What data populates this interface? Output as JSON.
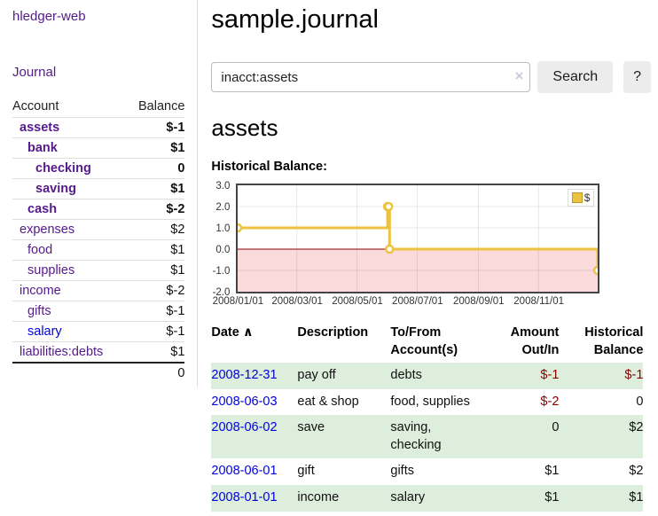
{
  "colors": {
    "link-purple": "#551a8b",
    "link-blue": "#0000dd",
    "neg-strong": "#8b0000",
    "neg-faded": "#bb7777",
    "row-green": "#ddeedd",
    "chart-gold": "#edc240",
    "chart-neg-bg": "#fadada",
    "chart-zero": "#8b0000",
    "chart-border": "#444444"
  },
  "app": {
    "title": "hledger-web"
  },
  "sidebar": {
    "nav": [
      {
        "label": "Journal"
      }
    ],
    "accounts_table": {
      "headers": [
        "Account",
        "Balance"
      ],
      "rows": [
        {
          "account": "assets",
          "balance": "$-1",
          "indent": 1,
          "bold": true,
          "balance_tone": "neg",
          "link_tone": "purple"
        },
        {
          "account": "bank",
          "balance": "$1",
          "indent": 2,
          "bold": true,
          "balance_tone": "",
          "link_tone": "purple"
        },
        {
          "account": "checking",
          "balance": "0",
          "indent": 3,
          "bold": true,
          "balance_tone": "",
          "link_tone": "purple"
        },
        {
          "account": "saving",
          "balance": "$1",
          "indent": 3,
          "bold": true,
          "balance_tone": "",
          "link_tone": "purple"
        },
        {
          "account": "cash",
          "balance": "$-2",
          "indent": 2,
          "bold": true,
          "balance_tone": "neg",
          "link_tone": "purple"
        },
        {
          "account": "expenses",
          "balance": "$2",
          "indent": 1,
          "bold": false,
          "balance_tone": "",
          "link_tone": "purple"
        },
        {
          "account": "food",
          "balance": "$1",
          "indent": 2,
          "bold": false,
          "balance_tone": "",
          "link_tone": "purple"
        },
        {
          "account": "supplies",
          "balance": "$1",
          "indent": 2,
          "bold": false,
          "balance_tone": "",
          "link_tone": "purple"
        },
        {
          "account": "income",
          "balance": "$-2",
          "indent": 1,
          "bold": false,
          "balance_tone": "negfade",
          "link_tone": "purple"
        },
        {
          "account": "gifts",
          "balance": "$-1",
          "indent": 2,
          "bold": false,
          "balance_tone": "negfade",
          "link_tone": "purple"
        },
        {
          "account": "salary",
          "balance": "$-1",
          "indent": 2,
          "bold": false,
          "balance_tone": "negfade",
          "link_tone": "blue"
        },
        {
          "account": "liabilities:debts",
          "balance": "$1",
          "indent": 1,
          "bold": false,
          "balance_tone": "",
          "link_tone": "purple"
        }
      ],
      "total": "0"
    }
  },
  "main": {
    "title": "sample.journal",
    "search": {
      "value": "inacct:assets",
      "clear_icon": "×",
      "button": "Search",
      "help_button": "?"
    },
    "account_heading": "assets",
    "chart_heading": "Historical Balance:",
    "register_table": {
      "headers": [
        "Date",
        "Description",
        "To/From Account(s)",
        "Amount Out/In",
        "Historical Balance"
      ],
      "sort_icon": "∧",
      "rows": [
        {
          "date": "2008-12-31",
          "description": "pay off",
          "accounts": "debts",
          "amount": "$-1",
          "amount_tone": "neg",
          "balance": "$-1",
          "balance_tone": "neg",
          "shaded": true
        },
        {
          "date": "2008-06-03",
          "description": "eat & shop",
          "accounts": "food, supplies",
          "amount": "$-2",
          "amount_tone": "neg",
          "balance": "0",
          "balance_tone": "",
          "shaded": false
        },
        {
          "date": "2008-06-02",
          "description": "save",
          "accounts": "saving, checking",
          "amount": "0",
          "amount_tone": "",
          "balance": "$2",
          "balance_tone": "",
          "shaded": true
        },
        {
          "date": "2008-06-01",
          "description": "gift",
          "accounts": "gifts",
          "amount": "$1",
          "amount_tone": "",
          "balance": "$2",
          "balance_tone": "",
          "shaded": false
        },
        {
          "date": "2008-01-01",
          "description": "income",
          "accounts": "salary",
          "amount": "$1",
          "amount_tone": "",
          "balance": "$1",
          "balance_tone": "",
          "shaded": true
        }
      ]
    }
  },
  "chart_data": {
    "type": "line",
    "style": "step",
    "title": "Historical Balance:",
    "ylim": [
      -2.0,
      3.0
    ],
    "xlim_days": [
      0,
      365
    ],
    "y_ticks": [
      "3.0",
      "2.0",
      "1.0",
      "0.0",
      "-1.0",
      "-2.0"
    ],
    "x_ticks": [
      {
        "day": 0,
        "label": "2008/01/01"
      },
      {
        "day": 60,
        "label": "2008/03/01"
      },
      {
        "day": 121,
        "label": "2008/05/01"
      },
      {
        "day": 182,
        "label": "2008/07/01"
      },
      {
        "day": 244,
        "label": "2008/09/01"
      },
      {
        "day": 305,
        "label": "2008/11/01"
      }
    ],
    "series": [
      {
        "name": "$",
        "color": "#edc240",
        "points": [
          {
            "date": "2008-01-01",
            "day": 0,
            "value": 1
          },
          {
            "date": "2008-06-01",
            "day": 152,
            "value": 2
          },
          {
            "date": "2008-06-02",
            "day": 153,
            "value": 2
          },
          {
            "date": "2008-06-03",
            "day": 154,
            "value": 0
          },
          {
            "date": "2008-12-31",
            "day": 365,
            "value": -1
          }
        ]
      }
    ],
    "legend": {
      "label": "$",
      "position": "top-right"
    },
    "negative_region_fill": "#fadada",
    "zero_line_color": "#8b0000",
    "grid": true
  }
}
